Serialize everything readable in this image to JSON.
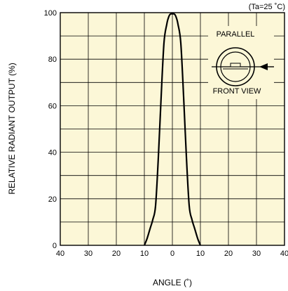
{
  "chart_data": {
    "type": "line",
    "condition_note": "(Ta=25 ˚C)",
    "xlabel": "ANGLE (˚)",
    "ylabel": "RELATIVE RADIANT OUTPUT (%)",
    "x_tick_values": [
      -40,
      -30,
      -20,
      -10,
      0,
      10,
      20,
      30,
      40
    ],
    "x_tick_labels": [
      "40",
      "30",
      "20",
      "10",
      "0",
      "10",
      "20",
      "30",
      "40"
    ],
    "y_tick_values": [
      0,
      20,
      40,
      60,
      80,
      100
    ],
    "y_tick_labels": [
      "0",
      "20",
      "40",
      "60",
      "80",
      "100"
    ],
    "xlim": [
      -40,
      40
    ],
    "ylim": [
      0,
      100
    ],
    "grid": true,
    "grid_minor_y_step": 10,
    "x": [
      -10,
      -9,
      -8,
      -7,
      -6,
      -5,
      -4,
      -3,
      -2,
      -1.5,
      -1,
      -0.5,
      0,
      0.5,
      1,
      1.5,
      2,
      3,
      4,
      5,
      6,
      7,
      8,
      9,
      10
    ],
    "y": [
      0,
      3,
      7,
      11,
      17,
      38,
      64,
      87,
      95,
      97.5,
      99,
      99.5,
      99.5,
      99.5,
      99,
      97.5,
      95,
      87,
      64,
      38,
      17,
      11,
      7,
      3,
      0
    ],
    "inset": {
      "top_label": "PARALLEL",
      "bottom_label": "FRONT VIEW"
    },
    "colors": {
      "plot_background": "#fcf7d7",
      "grid": "#000000",
      "curve": "#000000"
    }
  }
}
